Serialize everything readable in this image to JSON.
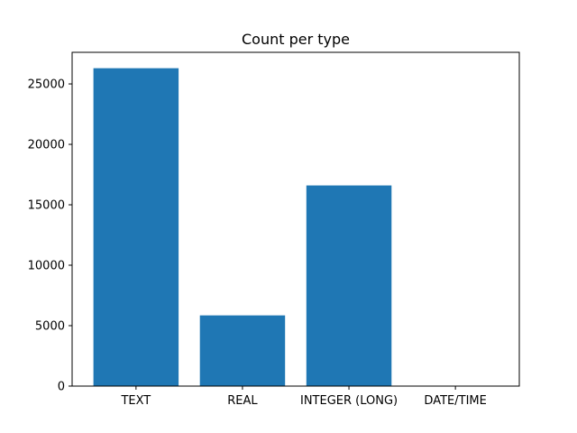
{
  "chart_data": {
    "type": "bar",
    "title": "Count per type",
    "xlabel": "",
    "ylabel": "",
    "categories": [
      "TEXT",
      "REAL",
      "INTEGER (LONG)",
      "DATE/TIME"
    ],
    "values": [
      26300,
      5850,
      16600,
      0
    ],
    "ylim": [
      0,
      27615
    ],
    "yticks": [
      0,
      5000,
      10000,
      15000,
      20000,
      25000
    ],
    "ytick_labels": [
      "0",
      "5000",
      "10000",
      "15000",
      "20000",
      "25000"
    ],
    "grid": false,
    "legend": "none",
    "bar_color": "#1f77b4"
  }
}
